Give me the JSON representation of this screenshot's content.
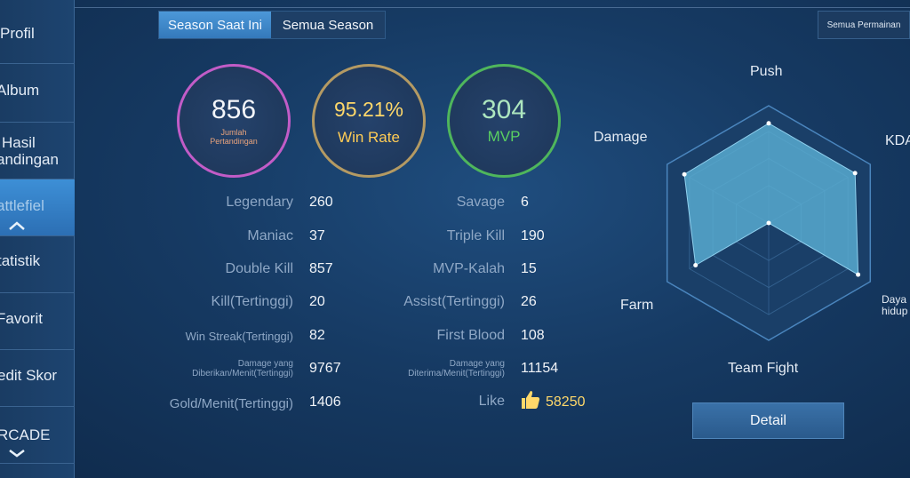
{
  "sidebar": {
    "items": [
      {
        "label": "Profil"
      },
      {
        "label": "Album"
      },
      {
        "label": "Hasil Pertandingan",
        "line1": "Hasil",
        "line2": "andingan"
      },
      {
        "label": "Battlefield",
        "display": "attlefiel"
      },
      {
        "label": "Statistik",
        "display": "tatistik"
      },
      {
        "label": "Favorit",
        "display": "Favorit"
      },
      {
        "label": "Kredit Skor",
        "display": "edit Skor"
      },
      {
        "label": "ARCADE",
        "display": "RCADE"
      }
    ]
  },
  "tabs": [
    {
      "label": "Season Saat Ini",
      "active": true
    },
    {
      "label": "Semua Season",
      "active": false
    }
  ],
  "all_games_label": "Semua Permainan",
  "summary": {
    "matches": {
      "value": "856",
      "label": "Jumlah Pertandingan",
      "line1": "Jumlah",
      "line2": "Pertandingan"
    },
    "win_rate": {
      "value": "95.21%",
      "label": "Win Rate"
    },
    "mvp": {
      "value": "304",
      "label": "MVP"
    }
  },
  "stats_left": [
    {
      "label": "Legendary",
      "value": "260"
    },
    {
      "label": "Maniac",
      "value": "37"
    },
    {
      "label": "Double Kill",
      "value": "857"
    },
    {
      "label": "Kill(Tertinggi)",
      "value": "20"
    },
    {
      "label": "Win Streak(Tertinggi)",
      "value": "82"
    },
    {
      "label": "Damage yang Diberikan/Menit(Tertinggi)",
      "line1": "Damage yang",
      "line2": "Diberikan/Menit(Tertinggi)",
      "value": "9767"
    },
    {
      "label": "Gold/Menit(Tertinggi)",
      "value": "1406"
    }
  ],
  "stats_right": [
    {
      "label": "Savage",
      "value": "6"
    },
    {
      "label": "Triple Kill",
      "value": "190"
    },
    {
      "label": "MVP-Kalah",
      "value": "15"
    },
    {
      "label": "Assist(Tertinggi)",
      "value": "26"
    },
    {
      "label": "First Blood",
      "value": "108"
    },
    {
      "label": "Damage yang Diterima/Menit(Tertinggi)",
      "line1": "Damage yang",
      "line2": "Diterima/Menit(Tertinggi)",
      "value": "11154"
    },
    {
      "label": "Like",
      "value": "58250",
      "icon": "thumbs-up-icon"
    }
  ],
  "radar": {
    "axes": [
      {
        "label": "Push",
        "level": 0.85
      },
      {
        "label": "KDA",
        "level": 0.85
      },
      {
        "label": "Daya hidup",
        "line1": "Daya",
        "line2": "hidup",
        "level": 0.88
      },
      {
        "label": "Team Fight",
        "level": 0.0
      },
      {
        "label": "Farm",
        "level": 0.72
      },
      {
        "label": "Damage",
        "level": 0.83
      }
    ],
    "fill_color": "#5aaed3",
    "outline_color": "#4a85bd"
  },
  "detail_label": "Detail",
  "colors": {
    "accent": "#3d8fd6",
    "matches_ring": "#c25cc7",
    "winrate_ring": "#b49a63",
    "mvp_ring": "#4fb65c",
    "winrate_text": "#ffd86a",
    "mvp_text": "#5ad061"
  }
}
